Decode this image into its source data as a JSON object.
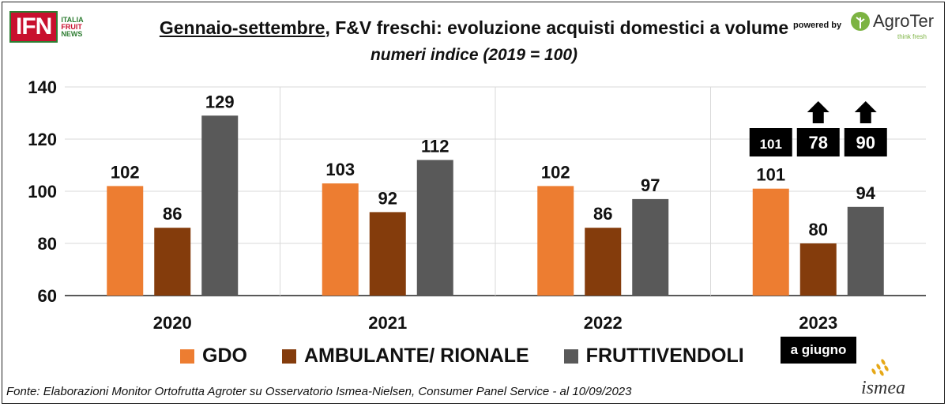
{
  "header": {
    "title_underlined": "Gennaio-settembre",
    "title_rest": ", F&V freschi: evoluzione acquisti domestici a volume",
    "subtitle": "numeri indice (2019 = 100)",
    "powered_by": "powered by",
    "logo_ifn": "IFN",
    "logo_ifn_sub": [
      "ITALIA",
      "FRUIT",
      "NEWS"
    ],
    "logo_agroter": "AgroTer",
    "logo_agroter_tag": "think fresh",
    "logo_ismea": "ismea"
  },
  "chart_data": {
    "type": "bar",
    "categories": [
      "2020",
      "2021",
      "2022",
      "2023"
    ],
    "series": [
      {
        "name": "GDO",
        "color": "#ed7d31",
        "values": [
          102,
          103,
          102,
          101
        ]
      },
      {
        "name": "AMBULANTE/ RIONALE",
        "color": "#843c0c",
        "values": [
          86,
          92,
          86,
          80
        ]
      },
      {
        "name": "FRUTTIVENDOLI",
        "color": "#595959",
        "values": [
          129,
          112,
          97,
          94
        ]
      }
    ],
    "ylim": [
      60,
      140
    ],
    "yticks": [
      60,
      80,
      100,
      120,
      140
    ],
    "grid": true,
    "legend": "bottom",
    "annotations": {
      "category": "2023",
      "boxes": [
        "101",
        "78",
        "90"
      ],
      "arrows_up": [
        false,
        true,
        true
      ],
      "note": "a giugno"
    }
  },
  "footer": {
    "source": "Fonte: Elaborazioni Monitor Ortofrutta Agroter su Osservatorio Ismea-Nielsen, Consumer Panel Service - al 10/09/2023"
  }
}
